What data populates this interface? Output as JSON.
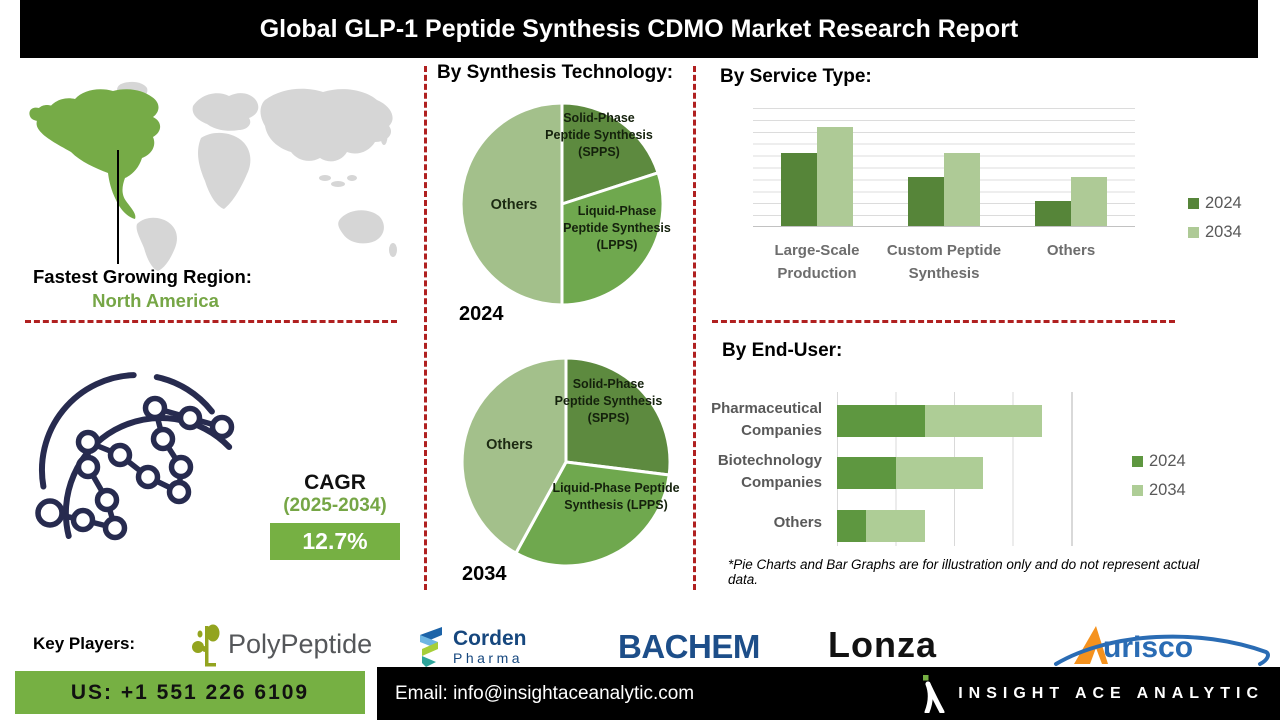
{
  "header": {
    "title": "Global GLP-1 Peptide Synthesis CDMO Market  Research Report"
  },
  "region": {
    "label": "Fastest Growing Region:",
    "value": "North America"
  },
  "sections": {
    "synthesis_title": "By Synthesis Technology:",
    "service_title": "By Service Type:",
    "enduser_title": "By End-User:",
    "disclaimer": "*Pie Charts and Bar Graphs are for illustration only and do not represent actual data."
  },
  "cagr": {
    "label": "CAGR",
    "period": "(2025-2034)",
    "value": "12.7%"
  },
  "chart_data": [
    {
      "type": "pie",
      "title": "By Synthesis Technology:",
      "year": "2024",
      "labels": [
        "Solid-Phase Peptide Synthesis (SPPS)",
        "Liquid-Phase Peptide Synthesis (LPPS)",
        "Others"
      ],
      "values": [
        20,
        30,
        50
      ],
      "colors": [
        "#5d8a3f",
        "#6fa84e",
        "#a3c08b"
      ],
      "note": "illustrative only"
    },
    {
      "type": "pie",
      "title": "By Synthesis Technology:",
      "year": "2034",
      "labels": [
        "Solid-Phase Peptide Synthesis (SPPS)",
        "Liquid-Phase Peptide Synthesis (LPPS)",
        "Others"
      ],
      "values": [
        27,
        31,
        42
      ],
      "colors": [
        "#5d8a3f",
        "#6fa84e",
        "#a3c08b"
      ],
      "note": "illustrative only"
    },
    {
      "type": "bar",
      "title": "By Service Type:",
      "categories": [
        "Large-Scale Production",
        "Custom Peptide Synthesis",
        "Others"
      ],
      "series": [
        {
          "name": "2024",
          "values": [
            65,
            44,
            22
          ],
          "color": "#568539"
        },
        {
          "name": "2034",
          "values": [
            88,
            65,
            44
          ],
          "color": "#aeca96"
        }
      ],
      "ylim": [
        0,
        106
      ],
      "grid": true,
      "legend_position": "right",
      "note": "illustrative only"
    },
    {
      "type": "bar-horizontal-stacked",
      "title": "By End-User:",
      "categories": [
        "Pharmaceutical Companies",
        "Biotechnology Companies",
        "Others"
      ],
      "series": [
        {
          "name": "2024",
          "values": [
            30,
            20,
            10
          ],
          "color": "#5e9740"
        },
        {
          "name": "2034",
          "values": [
            40,
            30,
            20
          ],
          "color": "#aecd96"
        }
      ],
      "xlim": [
        0,
        80
      ],
      "grid": true,
      "legend_position": "right",
      "note": "illustrative only"
    }
  ],
  "key_players": {
    "label": "Key Players:",
    "polypeptide": "PolyPeptide",
    "corden_line1": "Corden",
    "corden_line2": "Pharma",
    "bachem": "BACHEM",
    "lonza": "Lonza",
    "aurisco": "urisco"
  },
  "footer": {
    "phone": "US: +1 551 226 6109",
    "email": "Email: info@insightaceanalytic.com",
    "brand": "INSIGHT ACE ANALYTIC"
  },
  "colors": {
    "accent_green": "#76b043",
    "dark_green": "#5d8a3f",
    "mid_green": "#6fa84e",
    "light_green": "#a3c08b",
    "dashed_red": "#b02020",
    "navy": "#272b4f",
    "map_highlight": "#76ab47",
    "map_gray": "#d6d6d6"
  }
}
